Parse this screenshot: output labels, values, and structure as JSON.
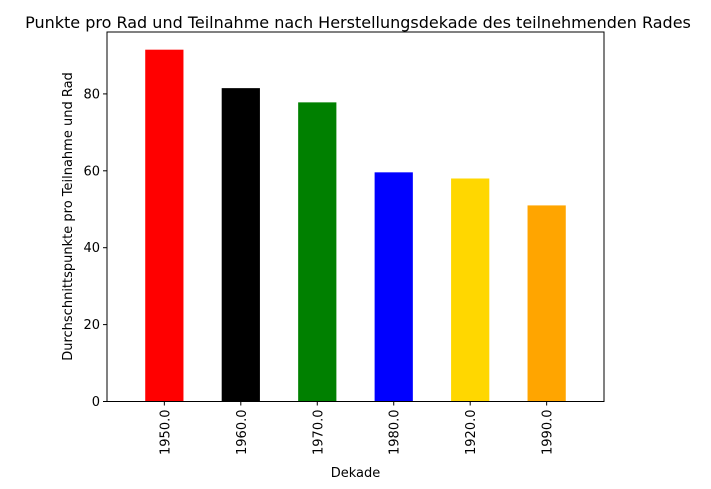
{
  "chart_data": {
    "type": "bar",
    "title": "Punkte pro Rad und Teilnahme nach Herstellungsdekade des teilnehmenden Rades",
    "xlabel": "Dekade",
    "ylabel": "Durchschnittspunkte pro Teilnahme und Rad",
    "categories": [
      "1950.0",
      "1960.0",
      "1970.0",
      "1980.0",
      "1920.0",
      "1990.0"
    ],
    "values": [
      91.5,
      81.5,
      77.8,
      59.6,
      58.0,
      51.0
    ],
    "colors": [
      "#ff0000",
      "#000000",
      "#008000",
      "#0000ff",
      "#ffd700",
      "#ffa500"
    ],
    "ylim": [
      0,
      96.1
    ],
    "yticks": [
      0,
      20,
      40,
      60,
      80
    ],
    "grid": false,
    "legend": "none"
  }
}
